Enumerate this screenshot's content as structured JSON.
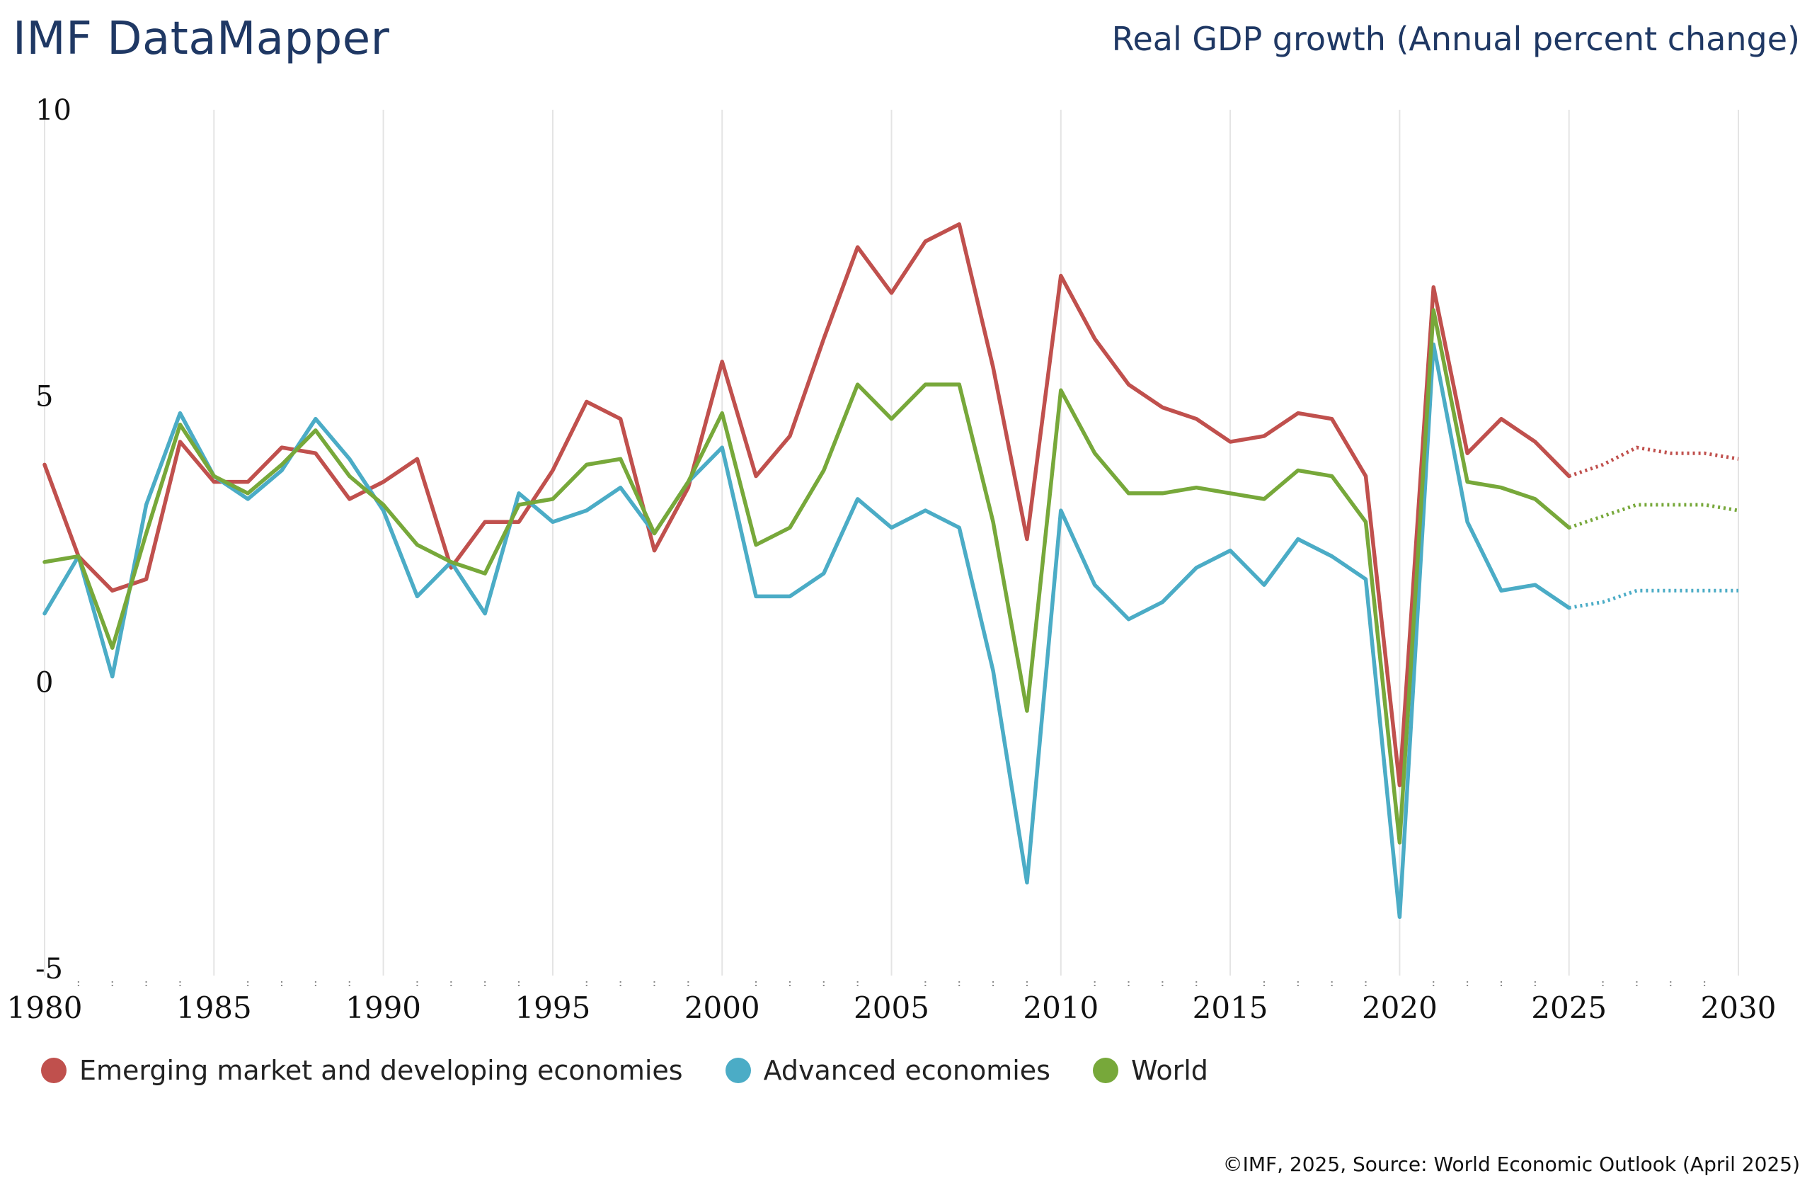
{
  "header": {
    "brand": "IMF DataMapper",
    "indicator_title": "Real GDP growth (Annual percent change)"
  },
  "footer": {
    "source": "©IMF, 2025, Source: World Economic Outlook (April 2025)"
  },
  "chart_data": {
    "type": "line",
    "title": "Real GDP growth (Annual percent change)",
    "xlabel": "",
    "ylabel": "",
    "xlim": [
      1980,
      2030
    ],
    "ylim": [
      -5,
      10
    ],
    "x_ticks": [
      "1980",
      "1985",
      "1990",
      "1995",
      "2000",
      "2005",
      "2010",
      "2015",
      "2020",
      "2025",
      "2030"
    ],
    "y_ticks": [
      "10",
      "5",
      "0",
      "-5"
    ],
    "grid": "vertical",
    "legend_position": "bottom-left",
    "projection_start": 2025,
    "x": [
      1980,
      1981,
      1982,
      1983,
      1984,
      1985,
      1986,
      1987,
      1988,
      1989,
      1990,
      1991,
      1992,
      1993,
      1994,
      1995,
      1996,
      1997,
      1998,
      1999,
      2000,
      2001,
      2002,
      2003,
      2004,
      2005,
      2006,
      2007,
      2008,
      2009,
      2010,
      2011,
      2012,
      2013,
      2014,
      2015,
      2016,
      2017,
      2018,
      2019,
      2020,
      2021,
      2022,
      2023,
      2024,
      2025,
      2026,
      2027,
      2028,
      2029,
      2030
    ],
    "series": [
      {
        "name": "Emerging market and developing economies",
        "color": "#c0504d",
        "values": [
          3.8,
          2.2,
          1.6,
          1.8,
          4.2,
          3.5,
          3.5,
          4.1,
          4.0,
          3.2,
          3.5,
          3.9,
          2.0,
          2.8,
          2.8,
          3.7,
          4.9,
          4.6,
          2.3,
          3.4,
          5.6,
          3.6,
          4.3,
          6.0,
          7.6,
          6.8,
          7.7,
          8.0,
          5.5,
          2.5,
          7.1,
          6.0,
          5.2,
          4.8,
          4.6,
          4.2,
          4.3,
          4.7,
          4.6,
          3.6,
          -1.8,
          6.9,
          4.0,
          4.6,
          4.2,
          3.6,
          3.8,
          4.1,
          4.0,
          4.0,
          3.9
        ]
      },
      {
        "name": "Advanced economies",
        "color": "#4bacc6",
        "values": [
          1.2,
          2.2,
          0.1,
          3.1,
          4.7,
          3.6,
          3.2,
          3.7,
          4.6,
          3.9,
          3.0,
          1.5,
          2.1,
          1.2,
          3.3,
          2.8,
          3.0,
          3.4,
          2.6,
          3.5,
          4.1,
          1.5,
          1.5,
          1.9,
          3.2,
          2.7,
          3.0,
          2.7,
          0.2,
          -3.5,
          3.0,
          1.7,
          1.1,
          1.4,
          2.0,
          2.3,
          1.7,
          2.5,
          2.2,
          1.8,
          -4.1,
          5.9,
          2.8,
          1.6,
          1.7,
          1.3,
          1.4,
          1.6,
          1.6,
          1.6,
          1.6
        ]
      },
      {
        "name": "World",
        "color": "#77a83a",
        "values": [
          2.1,
          2.2,
          0.6,
          2.6,
          4.5,
          3.6,
          3.3,
          3.8,
          4.4,
          3.6,
          3.1,
          2.4,
          2.1,
          1.9,
          3.1,
          3.2,
          3.8,
          3.9,
          2.6,
          3.5,
          4.7,
          2.4,
          2.7,
          3.7,
          5.2,
          4.6,
          5.2,
          5.2,
          2.8,
          -0.5,
          5.1,
          4.0,
          3.3,
          3.3,
          3.4,
          3.3,
          3.2,
          3.7,
          3.6,
          2.8,
          -2.8,
          6.5,
          3.5,
          3.4,
          3.2,
          2.7,
          2.9,
          3.1,
          3.1,
          3.1,
          3.0
        ]
      }
    ]
  }
}
